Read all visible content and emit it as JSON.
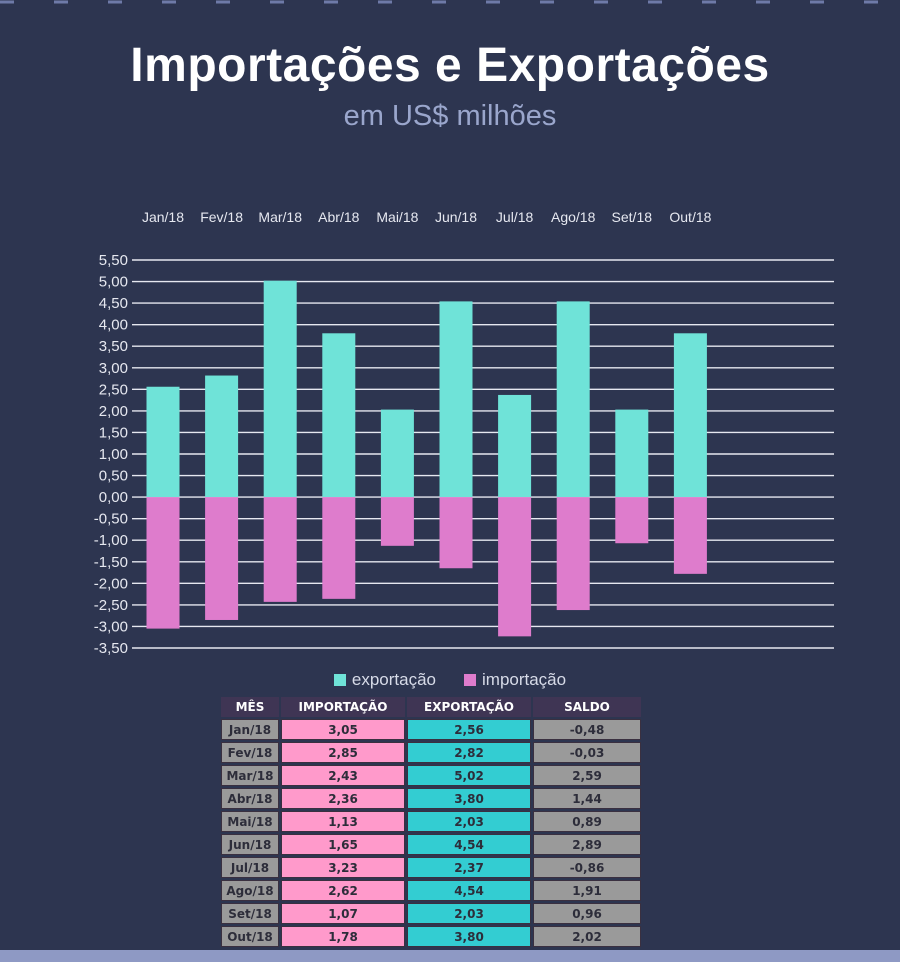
{
  "title": "Importações e Exportações",
  "subtitle": "em US$ milhões",
  "colors": {
    "background": "#2d3550",
    "exportacao": "#6fe3d8",
    "importacao": "#de7ccc",
    "grid": "#e6e8f0",
    "table_header": "#3f3554",
    "table_importacao": "#ff9acb",
    "table_exportacao": "#33cdd2",
    "table_neutral": "#9a9a9a"
  },
  "chart_data": {
    "type": "bar",
    "categories": [
      "Jan/18",
      "Fev/18",
      "Mar/18",
      "Abr/18",
      "Mai/18",
      "Jun/18",
      "Jul/18",
      "Ago/18",
      "Set/18",
      "Out/18"
    ],
    "series": [
      {
        "name": "exportação",
        "values": [
          2.56,
          2.82,
          5.02,
          3.8,
          2.03,
          4.54,
          2.37,
          4.54,
          2.03,
          3.8
        ]
      },
      {
        "name": "importação",
        "values": [
          -3.05,
          -2.85,
          -2.43,
          -2.36,
          -1.13,
          -1.65,
          -3.23,
          -2.62,
          -1.07,
          -1.78
        ]
      }
    ],
    "yticks": [
      "5,50",
      "5,00",
      "4,50",
      "4,00",
      "3,50",
      "3,00",
      "2,50",
      "2,00",
      "1,50",
      "1,00",
      "0,50",
      "0,00",
      "-0,50",
      "-1,00",
      "-1,50",
      "-2,00",
      "-2,50",
      "-3,00",
      "-3,50"
    ],
    "ylim": [
      -3.5,
      5.5
    ],
    "grid": true,
    "legend_position": "bottom",
    "category_labels_position": "top"
  },
  "table": {
    "headers": [
      "MÊS",
      "IMPORTAÇÃO",
      "EXPORTAÇÃO",
      "SALDO"
    ],
    "rows": [
      [
        "Jan/18",
        "3,05",
        "2,56",
        "-0,48"
      ],
      [
        "Fev/18",
        "2,85",
        "2,82",
        "-0,03"
      ],
      [
        "Mar/18",
        "2,43",
        "5,02",
        "2,59"
      ],
      [
        "Abr/18",
        "2,36",
        "3,80",
        "1,44"
      ],
      [
        "Mai/18",
        "1,13",
        "2,03",
        "0,89"
      ],
      [
        "Jun/18",
        "1,65",
        "4,54",
        "2,89"
      ],
      [
        "Jul/18",
        "3,23",
        "2,37",
        "-0,86"
      ],
      [
        "Ago/18",
        "2,62",
        "4,54",
        "1,91"
      ],
      [
        "Set/18",
        "1,07",
        "2,03",
        "0,96"
      ],
      [
        "Out/18",
        "1,78",
        "3,80",
        "2,02"
      ]
    ]
  }
}
